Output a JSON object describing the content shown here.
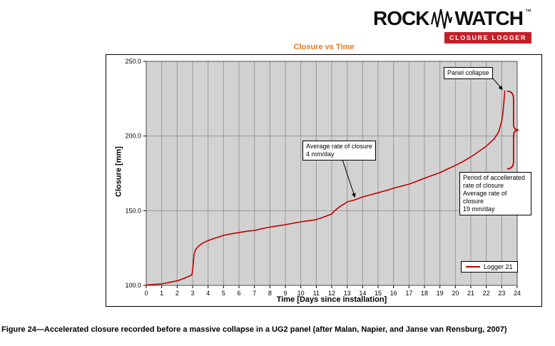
{
  "logo": {
    "word1": "ROCK",
    "word2": "WATCH",
    "trademark": "™",
    "tagline": "CLOSURE LOGGER"
  },
  "caption": "Figure 24—Accelerated closure recorded before a massive collapse in a UG2 panel (after Malan, Napier, and Janse van Rensburg, 2007)",
  "colors": {
    "series": "#c00000",
    "title": "#e87722",
    "plot_bg": "#d2d2d2",
    "grid": "#999999",
    "axis": "#4d4d4d",
    "logo_bar": "#c41e28"
  },
  "chart_data": {
    "type": "line",
    "title": "Closure vs Time",
    "xlabel": "Time [Days since installation]",
    "ylabel": "Closure [mm]",
    "xlim": [
      0,
      24
    ],
    "ylim": [
      100,
      250
    ],
    "x_ticks": [
      0,
      1,
      2,
      3,
      4,
      5,
      6,
      7,
      8,
      9,
      10,
      11,
      12,
      13,
      14,
      15,
      16,
      17,
      18,
      19,
      20,
      21,
      22,
      23,
      24
    ],
    "y_ticks": [
      100,
      150,
      200,
      250
    ],
    "y_tick_labels": [
      "100.0",
      "150.0",
      "200.0",
      "250.0"
    ],
    "grid": "x-every-day, y-major-only",
    "legend_position": "inside-lower-right",
    "series": [
      {
        "name": "Logger 21",
        "color": "#c00000",
        "points": [
          [
            0,
            100.3
          ],
          [
            0.5,
            100.6
          ],
          [
            1,
            101.0
          ],
          [
            1.5,
            102.0
          ],
          [
            2,
            103.0
          ],
          [
            2.4,
            104.5
          ],
          [
            2.7,
            105.8
          ],
          [
            2.95,
            107.0
          ],
          [
            3.0,
            110.0
          ],
          [
            3.05,
            116.0
          ],
          [
            3.1,
            121.0
          ],
          [
            3.2,
            124.0
          ],
          [
            3.4,
            126.5
          ],
          [
            3.7,
            128.5
          ],
          [
            4,
            130.0
          ],
          [
            4.4,
            131.5
          ],
          [
            4.8,
            132.7
          ],
          [
            5,
            133.5
          ],
          [
            5.5,
            134.5
          ],
          [
            6,
            135.4
          ],
          [
            6.5,
            136.2
          ],
          [
            7,
            136.8
          ],
          [
            7.5,
            138.0
          ],
          [
            8,
            139.0
          ],
          [
            8.5,
            139.8
          ],
          [
            9,
            140.6
          ],
          [
            9.5,
            141.6
          ],
          [
            10,
            142.5
          ],
          [
            10.5,
            143.3
          ],
          [
            11,
            144.0
          ],
          [
            11.5,
            145.8
          ],
          [
            12,
            147.8
          ],
          [
            12.2,
            150.0
          ],
          [
            12.5,
            152.5
          ],
          [
            12.8,
            154.5
          ],
          [
            13,
            155.9
          ],
          [
            13.5,
            157.3
          ],
          [
            14,
            159.2
          ],
          [
            14.5,
            160.6
          ],
          [
            15,
            162.0
          ],
          [
            15.5,
            163.5
          ],
          [
            16,
            165.0
          ],
          [
            16.5,
            166.4
          ],
          [
            17,
            167.8
          ],
          [
            17.5,
            169.7
          ],
          [
            18,
            171.7
          ],
          [
            18.5,
            173.6
          ],
          [
            19,
            175.5
          ],
          [
            19.5,
            177.9
          ],
          [
            20,
            180.3
          ],
          [
            20.5,
            183.0
          ],
          [
            21,
            186.0
          ],
          [
            21.5,
            189.5
          ],
          [
            22,
            193.2
          ],
          [
            22.5,
            198.0
          ],
          [
            22.8,
            202.7
          ],
          [
            23,
            209.9
          ],
          [
            23.08,
            216.0
          ],
          [
            23.14,
            223.0
          ],
          [
            23.2,
            230.5
          ]
        ]
      }
    ],
    "annotations": [
      {
        "id": "panel_collapse",
        "text": "Panel collapse",
        "arrow": {
          "from": [
            22.4,
            239.0
          ],
          "to": [
            23.05,
            231.0
          ]
        }
      },
      {
        "id": "avg_rate",
        "text": "Average rate of closure\n4 mm/day",
        "arrow": {
          "from": [
            12.7,
            184.0
          ],
          "to": [
            13.5,
            159.0
          ]
        }
      },
      {
        "id": "accel_period",
        "text": "Period of accellerated\nrate of closure\nAverage rate of closure\n19 mm/day"
      }
    ],
    "brace": {
      "day": 23.35,
      "top_mm": 230,
      "bottom_mm": 178,
      "cusp_mm": 204
    }
  }
}
